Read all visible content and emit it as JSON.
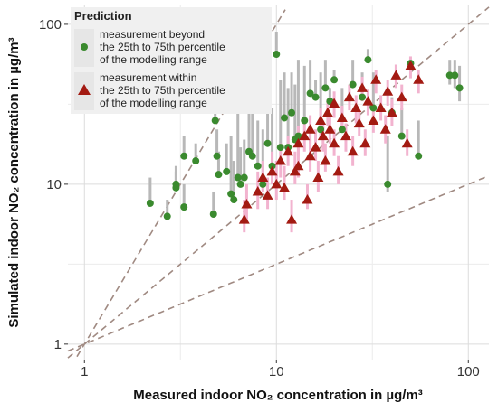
{
  "chart_data": {
    "type": "scatter",
    "xlabel": "Measured indoor NO₂ concentration in µg/m³",
    "ylabel": "Simulated indoor NO₂ concentration in µg/m³",
    "legend_title": "Prediction",
    "legend": "top-left",
    "log_x": true,
    "log_y": true,
    "grid": true,
    "xlim": [
      0.82,
      128
    ],
    "ylim": [
      0.8,
      133
    ],
    "xticks": [
      1,
      10,
      100
    ],
    "yticks": [
      1,
      10,
      100
    ],
    "reference_lines": [
      {
        "exponent": 2
      },
      {
        "exponent": 1
      },
      {
        "exponent": 0.5
      }
    ],
    "reference_color": "#a08a82",
    "series": [
      {
        "name": "measurement beyond\nthe 25th to 75th percentile\nof the modelling range",
        "color": "#3a8a2e",
        "marker": "circle",
        "error_color": "#b8b8b8",
        "x": [
          2.2,
          2.7,
          3,
          3,
          3.3,
          3.3,
          3.8,
          4.7,
          4.8,
          4.9,
          5,
          5.5,
          5.8,
          6,
          6.3,
          6.5,
          6.8,
          7.2,
          7.5,
          8,
          8.5,
          9,
          9.5,
          10,
          10.5,
          11,
          11.5,
          12,
          12.5,
          13,
          14,
          15,
          16,
          17,
          18,
          19,
          20,
          22,
          25,
          28,
          30,
          32,
          38,
          40,
          45,
          50,
          55,
          80,
          85,
          90
        ],
        "values": [
          7.6,
          6.3,
          9.5,
          10,
          7.2,
          15,
          14,
          6.5,
          25,
          15,
          11.5,
          12,
          8.7,
          8,
          11,
          10,
          11,
          16,
          15,
          13,
          10,
          18,
          13,
          65,
          17,
          26,
          17,
          28,
          19,
          20,
          25,
          37,
          35,
          22,
          40,
          33,
          45,
          22,
          42,
          35,
          60,
          30,
          10,
          28,
          20,
          57,
          15,
          48,
          48,
          40
        ],
        "err_low": [
          7.6,
          6.3,
          9.5,
          10,
          7.2,
          15,
          14,
          6.5,
          25,
          15,
          11.5,
          12,
          8.7,
          8,
          11,
          10,
          11,
          16,
          15,
          13,
          10,
          18,
          13,
          65,
          17,
          26,
          17,
          28,
          19,
          20,
          25,
          37,
          35,
          22,
          40,
          33,
          45,
          22,
          42,
          35,
          60,
          30,
          9,
          28,
          20,
          57,
          15,
          42,
          40,
          33
        ],
        "err_high": [
          11,
          8,
          13,
          12,
          10,
          20,
          18,
          9,
          40,
          22,
          16,
          18,
          20,
          14,
          30,
          17,
          19,
          35,
          30,
          25,
          22,
          40,
          30,
          90,
          45,
          50,
          40,
          50,
          42,
          60,
          55,
          60,
          45,
          50,
          60,
          40,
          52,
          40,
          60,
          50,
          70,
          50,
          20,
          35,
          30,
          60,
          25,
          60,
          60,
          55
        ]
      },
      {
        "name": "measurement within\nthe 25th to 75th percentile\nof the modelling range",
        "color": "#a31a12",
        "marker": "triangle",
        "error_color": "#f2b3cf",
        "x": [
          6.8,
          7,
          8,
          8.5,
          9,
          9.5,
          10,
          10.5,
          11,
          11.5,
          12,
          12.5,
          13,
          13,
          14,
          14.5,
          15,
          15,
          16,
          16.5,
          17,
          17.5,
          18,
          18.5,
          19,
          20,
          20,
          21,
          22,
          23,
          24,
          25,
          26,
          27,
          28,
          29,
          30,
          32,
          33,
          35,
          37,
          38,
          40,
          42,
          45,
          48,
          50,
          55
        ],
        "values": [
          6,
          7.5,
          9,
          11,
          8.5,
          12,
          10,
          14,
          9.5,
          16,
          6,
          12,
          18,
          13,
          20,
          8,
          22,
          15,
          17,
          11,
          25,
          20,
          14,
          28,
          22,
          18,
          32,
          12,
          26,
          20,
          35,
          16,
          30,
          24,
          40,
          18,
          33,
          25,
          45,
          30,
          22,
          38,
          28,
          48,
          35,
          18,
          55,
          45
        ],
        "err_low": [
          5,
          6,
          7,
          9,
          7,
          10,
          8,
          11,
          8,
          13,
          5,
          10,
          15,
          11,
          16,
          7,
          18,
          12,
          14,
          9,
          20,
          16,
          12,
          23,
          18,
          15,
          26,
          10,
          21,
          16,
          29,
          13,
          24,
          20,
          33,
          15,
          27,
          21,
          37,
          25,
          18,
          31,
          23,
          40,
          29,
          15,
          46,
          37
        ],
        "err_high": [
          8,
          10,
          12,
          14,
          11,
          16,
          14,
          18,
          13,
          20,
          8,
          16,
          23,
          17,
          25,
          10,
          27,
          19,
          22,
          14,
          30,
          24,
          18,
          34,
          27,
          22,
          38,
          15,
          31,
          24,
          42,
          20,
          36,
          29,
          47,
          22,
          39,
          30,
          52,
          36,
          27,
          45,
          34,
          56,
          42,
          22,
          63,
          52
        ]
      }
    ]
  }
}
